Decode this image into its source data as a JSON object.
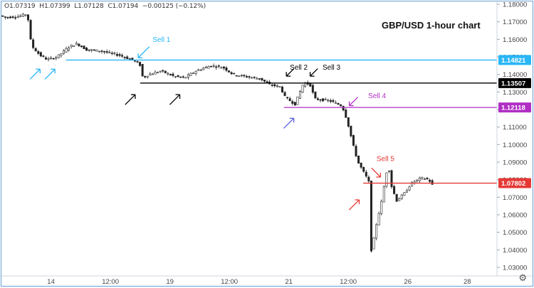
{
  "ohlc": {
    "open": "O1.07319",
    "high": "H1.07399",
    "low": "L1.07128",
    "close": "C1.07194",
    "change": "−0.00125 (−0.12%)"
  },
  "chart_data": {
    "type": "candlestick",
    "title": "GBP/USD 1-hour chart",
    "ylim": [
      1.03,
      1.18
    ],
    "y_ticks": [
      "1.18000",
      "1.17000",
      "1.16000",
      "1.15000",
      "1.14000",
      "1.13000",
      "1.12000",
      "1.11000",
      "1.10000",
      "1.09000",
      "1.08000",
      "1.07000",
      "1.06000",
      "1.05000",
      "1.04000",
      "1.03000"
    ],
    "x_ticks": [
      {
        "label": "14",
        "t": 0.1
      },
      {
        "label": "12:00",
        "t": 0.22
      },
      {
        "label": "19",
        "t": 0.34
      },
      {
        "label": "12:00",
        "t": 0.46
      },
      {
        "label": "21",
        "t": 0.58
      },
      {
        "label": "12:00",
        "t": 0.7
      },
      {
        "label": "26",
        "t": 0.82
      },
      {
        "label": "28",
        "t": 0.94
      }
    ],
    "levels": [
      {
        "price": 1.14821,
        "label": "1.14821",
        "color": "#29b6f6",
        "start": 0.13
      },
      {
        "price": 1.13507,
        "label": "1.13507",
        "color": "#000000",
        "start": 0.28
      },
      {
        "price": 1.12118,
        "label": "1.12118",
        "color": "#b02fc4",
        "start": 0.57
      },
      {
        "price": 1.07802,
        "label": "1.07802",
        "color": "#e53935",
        "start": 0.73
      }
    ],
    "annotations": [
      {
        "text": "Sell 1",
        "color": "#29b6f6",
        "t": 0.305,
        "price": 1.1585
      },
      {
        "text": "Sell 2",
        "color": "#000000",
        "t": 0.582,
        "price": 1.1428
      },
      {
        "text": "Sell 3",
        "color": "#000000",
        "t": 0.648,
        "price": 1.1428
      },
      {
        "text": "Sell 4",
        "color": "#b02fc4",
        "t": 0.74,
        "price": 1.1264
      },
      {
        "text": "Sell 5",
        "color": "#e53935",
        "t": 0.757,
        "price": 1.0906
      }
    ],
    "arrows": [
      {
        "color": "#29b6f6",
        "t": 0.276,
        "price": 1.1495,
        "dir": "down-left",
        "len": 22
      },
      {
        "color": "#29b6f6",
        "t": 0.078,
        "price": 1.143,
        "dir": "up-right",
        "len": 20
      },
      {
        "color": "#29b6f6",
        "t": 0.108,
        "price": 1.143,
        "dir": "up-right",
        "len": 20
      },
      {
        "color": "#000000",
        "t": 0.27,
        "price": 1.1285,
        "dir": "up-right",
        "len": 20
      },
      {
        "color": "#000000",
        "t": 0.36,
        "price": 1.1285,
        "dir": "up-right",
        "len": 20
      },
      {
        "color": "#000000",
        "t": 0.575,
        "price": 1.139,
        "dir": "down-left",
        "len": 15
      },
      {
        "color": "#000000",
        "t": 0.623,
        "price": 1.139,
        "dir": "down-left",
        "len": 15
      },
      {
        "color": "#5b5fe0",
        "t": 0.59,
        "price": 1.115,
        "dir": "up-right",
        "len": 20
      },
      {
        "color": "#b02fc4",
        "t": 0.702,
        "price": 1.1222,
        "dir": "down-left",
        "len": 17
      },
      {
        "color": "#e53935",
        "t": 0.722,
        "price": 1.0685,
        "dir": "up-right",
        "len": 20
      },
      {
        "color": "#e53935",
        "t": 0.765,
        "price": 1.0815,
        "dir": "down-right",
        "len": 18
      }
    ],
    "path": [
      [
        0.0,
        1.1735
      ],
      [
        0.01,
        1.1725
      ],
      [
        0.035,
        1.173
      ],
      [
        0.055,
        1.1745
      ],
      [
        0.06,
        1.163
      ],
      [
        0.063,
        1.1565
      ],
      [
        0.08,
        1.151
      ],
      [
        0.095,
        1.1485
      ],
      [
        0.115,
        1.15
      ],
      [
        0.14,
        1.156
      ],
      [
        0.155,
        1.1575
      ],
      [
        0.175,
        1.154
      ],
      [
        0.2,
        1.1535
      ],
      [
        0.24,
        1.151
      ],
      [
        0.27,
        1.148
      ],
      [
        0.282,
        1.1455
      ],
      [
        0.288,
        1.138
      ],
      [
        0.3,
        1.14
      ],
      [
        0.325,
        1.142
      ],
      [
        0.35,
        1.139
      ],
      [
        0.372,
        1.138
      ],
      [
        0.395,
        1.142
      ],
      [
        0.425,
        1.145
      ],
      [
        0.45,
        1.144
      ],
      [
        0.47,
        1.14
      ],
      [
        0.49,
        1.139
      ],
      [
        0.525,
        1.1375
      ],
      [
        0.545,
        1.134
      ],
      [
        0.565,
        1.133
      ],
      [
        0.575,
        1.127
      ],
      [
        0.595,
        1.123
      ],
      [
        0.612,
        1.135
      ],
      [
        0.625,
        1.1345
      ],
      [
        0.635,
        1.126
      ],
      [
        0.665,
        1.125
      ],
      [
        0.69,
        1.122
      ],
      [
        0.7,
        1.114
      ],
      [
        0.712,
        1.1
      ],
      [
        0.722,
        1.09
      ],
      [
        0.738,
        1.082
      ],
      [
        0.745,
        1.078
      ],
      [
        0.748,
        1.039
      ],
      [
        0.752,
        1.043
      ],
      [
        0.76,
        1.056
      ],
      [
        0.77,
        1.068
      ],
      [
        0.778,
        1.082
      ],
      [
        0.783,
        1.089
      ],
      [
        0.79,
        1.076
      ],
      [
        0.8,
        1.068
      ],
      [
        0.815,
        1.072
      ],
      [
        0.83,
        1.078
      ],
      [
        0.85,
        1.081
      ],
      [
        0.865,
        1.08
      ],
      [
        0.872,
        1.077
      ]
    ]
  }
}
